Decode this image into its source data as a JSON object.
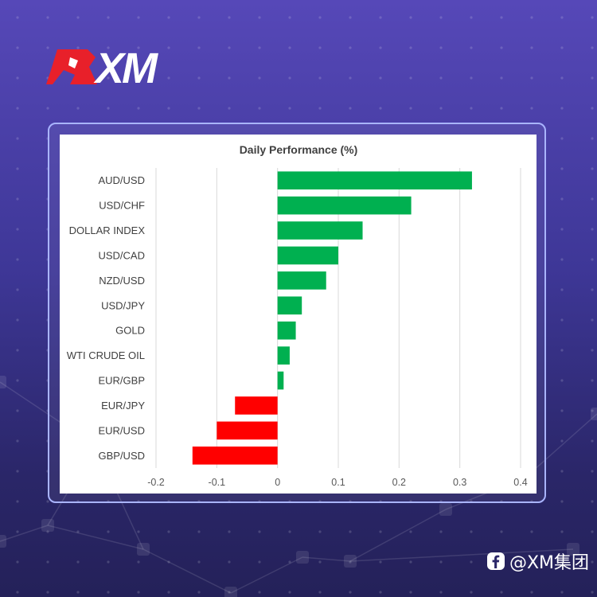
{
  "brand": {
    "logo_text": "XM"
  },
  "footer": {
    "handle": "@XM集团",
    "icon": "facebook-icon"
  },
  "colors": {
    "positive": "#00b050",
    "negative": "#ff0000",
    "logo_red": "#e8202a"
  },
  "chart_data": {
    "type": "bar",
    "orientation": "horizontal",
    "title": "Daily Performance (%)",
    "categories": [
      "AUD/USD",
      "USD/CHF",
      "DOLLAR INDEX",
      "USD/CAD",
      "NZD/USD",
      "USD/JPY",
      "GOLD",
      "WTI CRUDE OIL",
      "EUR/GBP",
      "EUR/JPY",
      "EUR/USD",
      "GBP/USD"
    ],
    "values": [
      0.32,
      0.22,
      0.14,
      0.1,
      0.08,
      0.04,
      0.03,
      0.02,
      0.01,
      -0.07,
      -0.1,
      -0.14
    ],
    "xlim": [
      -0.2,
      0.4
    ],
    "xticks": [
      "-0.2",
      "-0.1",
      "0",
      "0.1",
      "0.2",
      "0.3",
      "0.4"
    ],
    "xtick_values": [
      -0.2,
      -0.1,
      0,
      0.1,
      0.2,
      0.3,
      0.4
    ],
    "grid": true,
    "legend": "none"
  }
}
